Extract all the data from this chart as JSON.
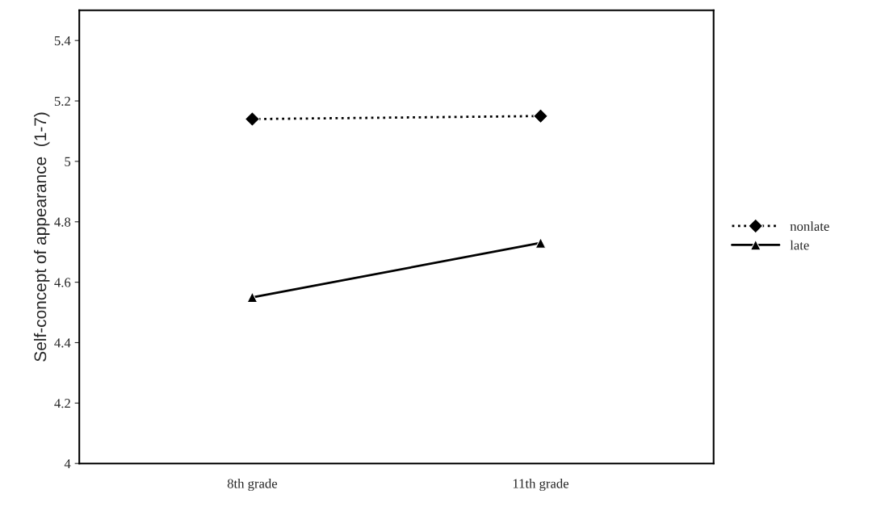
{
  "chart_data": {
    "type": "line",
    "ylabel": "Self-concept of appearance  (1-7)",
    "categories": [
      "8th grade",
      "11th grade"
    ],
    "series": [
      {
        "name": "nonlate",
        "color": "#000000",
        "values": [
          5.14,
          5.15
        ],
        "marker": "diamond",
        "line_style": "dotted"
      },
      {
        "name": "late",
        "color": "#000000",
        "values": [
          4.55,
          4.73
        ],
        "marker": "triangle",
        "line_style": "solid"
      }
    ],
    "ylim": [
      4,
      5.5
    ],
    "yticks": [
      4,
      4.2,
      4.4,
      4.6,
      4.8,
      5,
      5.2,
      5.4
    ],
    "grid": false,
    "legend": "right"
  }
}
